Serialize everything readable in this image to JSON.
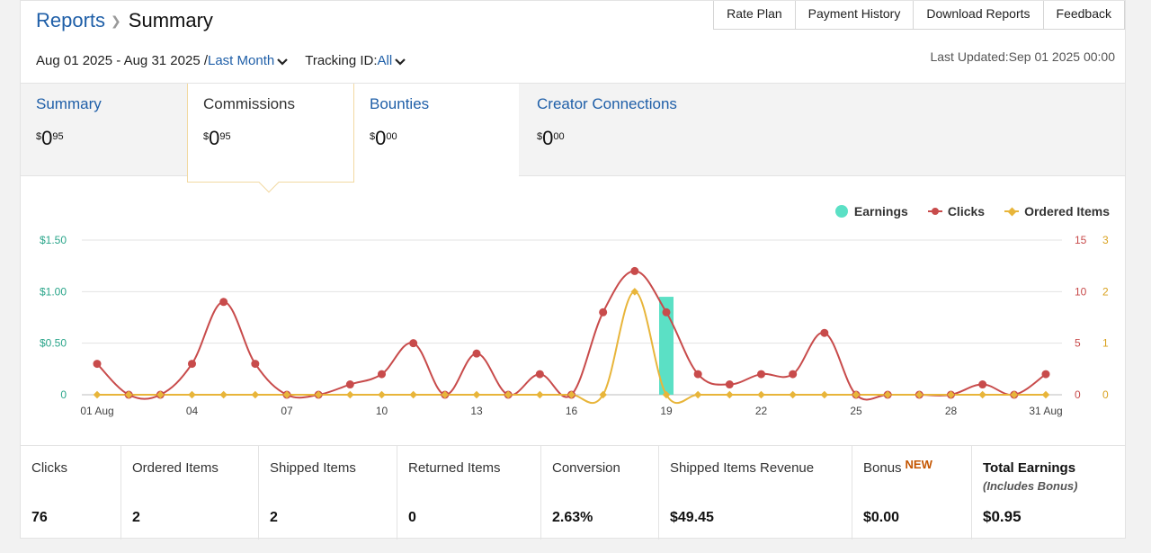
{
  "header": {
    "breadcrumb_parent": "Reports",
    "breadcrumb_current": "Summary",
    "nav": [
      "Rate Plan",
      "Payment History",
      "Download Reports",
      "Feedback"
    ]
  },
  "filters": {
    "date_range": "Aug 01 2025 - Aug 31 2025 /",
    "period": "Last Month",
    "tracking_label": "Tracking ID:",
    "tracking_value": "All",
    "last_updated": "Last Updated:Sep 01 2025 00:00"
  },
  "summary_tabs": [
    {
      "title": "Summary",
      "currency": "$",
      "whole": "0",
      "cents": "95"
    },
    {
      "title": "Commissions",
      "currency": "$",
      "whole": "0",
      "cents": "95"
    },
    {
      "title": "Bounties",
      "currency": "$",
      "whole": "0",
      "cents": "00"
    },
    {
      "title": "Creator Connections",
      "currency": "$",
      "whole": "0",
      "cents": "00"
    }
  ],
  "chart_data": {
    "type": "line",
    "legend": [
      "Earnings",
      "Clicks",
      "Ordered Items"
    ],
    "legend_position": "top-right",
    "x": [
      1,
      2,
      3,
      4,
      5,
      6,
      7,
      8,
      9,
      10,
      11,
      12,
      13,
      14,
      15,
      16,
      17,
      18,
      19,
      20,
      21,
      22,
      23,
      24,
      25,
      26,
      27,
      28,
      29,
      30,
      31
    ],
    "x_tick_labels": [
      "01 Aug",
      "04",
      "07",
      "10",
      "13",
      "16",
      "19",
      "22",
      "25",
      "28",
      "31 Aug"
    ],
    "series": [
      {
        "name": "Earnings",
        "axis": "left",
        "type": "bar",
        "color": "#5be0c5",
        "values": [
          0,
          0,
          0,
          0,
          0,
          0,
          0,
          0,
          0,
          0,
          0,
          0,
          0,
          0,
          0,
          0,
          0,
          0,
          0.95,
          0,
          0,
          0,
          0,
          0,
          0,
          0,
          0,
          0,
          0,
          0,
          0
        ]
      },
      {
        "name": "Clicks",
        "axis": "right1",
        "type": "line",
        "color": "#c84b4b",
        "values": [
          3,
          0,
          0,
          3,
          9,
          3,
          0,
          0,
          1,
          2,
          5,
          0,
          4,
          0,
          2,
          0,
          8,
          12,
          8,
          2,
          1,
          2,
          2,
          6,
          0,
          0,
          0,
          0,
          1,
          0,
          2
        ]
      },
      {
        "name": "Ordered Items",
        "axis": "right2",
        "type": "line",
        "color": "#e8b53a",
        "values": [
          0,
          0,
          0,
          0,
          0,
          0,
          0,
          0,
          0,
          0,
          0,
          0,
          0,
          0,
          0,
          0,
          0,
          2,
          0,
          0,
          0,
          0,
          0,
          0,
          0,
          0,
          0,
          0,
          0,
          0,
          0
        ]
      }
    ],
    "y_left": {
      "ticks": [
        "0",
        "$0.50",
        "$1.00",
        "$1.50"
      ],
      "ylim": [
        0,
        1.5
      ]
    },
    "y_right1": {
      "ticks": [
        "0",
        "5",
        "10",
        "15"
      ],
      "ylim": [
        0,
        15
      ]
    },
    "y_right2": {
      "ticks": [
        "0",
        "1",
        "2",
        "3"
      ],
      "ylim": [
        0,
        3
      ]
    },
    "grid": true
  },
  "stats": [
    {
      "label": "Clicks",
      "value": "76"
    },
    {
      "label": "Ordered Items",
      "value": "2"
    },
    {
      "label": "Shipped Items",
      "value": "2"
    },
    {
      "label": "Returned Items",
      "value": "0"
    },
    {
      "label": "Conversion",
      "value": "2.63%"
    },
    {
      "label": "Shipped Items Revenue",
      "value": "$49.45"
    },
    {
      "label": "Bonus",
      "badge": "NEW",
      "value": "$0.00"
    },
    {
      "label": "Total Earnings",
      "sub": "(Includes Bonus)",
      "value": "$0.95"
    }
  ],
  "colors": {
    "link": "#1f5fa8",
    "earnings": "#5be0c5",
    "clicks": "#c84b4b",
    "ordered": "#e8b53a",
    "badge": "#c45500"
  }
}
